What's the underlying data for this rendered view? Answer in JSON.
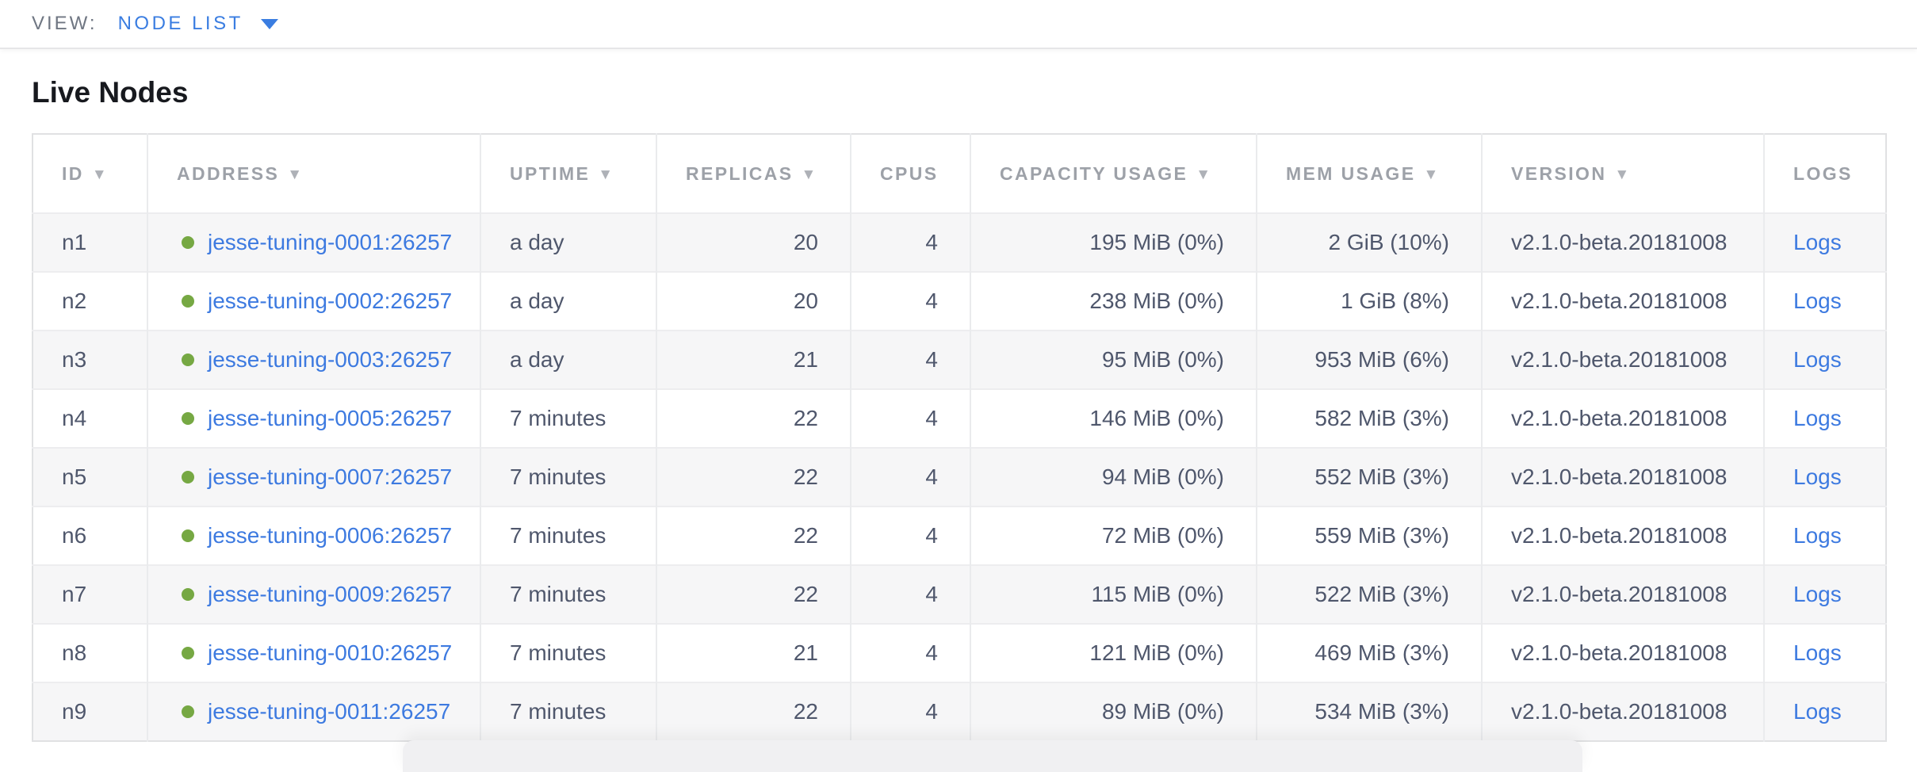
{
  "topbar": {
    "view_label": "VIEW:",
    "view_value": "NODE LIST"
  },
  "page": {
    "title": "Live Nodes"
  },
  "table": {
    "sort_arrow": "▼",
    "columns": [
      {
        "key": "id",
        "label": "ID",
        "sortable": true
      },
      {
        "key": "address",
        "label": "ADDRESS",
        "sortable": true
      },
      {
        "key": "uptime",
        "label": "UPTIME",
        "sortable": true
      },
      {
        "key": "replicas",
        "label": "REPLICAS",
        "sortable": true
      },
      {
        "key": "cpus",
        "label": "CPUS",
        "sortable": false
      },
      {
        "key": "capacity",
        "label": "CAPACITY USAGE",
        "sortable": true
      },
      {
        "key": "mem",
        "label": "MEM USAGE",
        "sortable": true
      },
      {
        "key": "version",
        "label": "VERSION",
        "sortable": true
      },
      {
        "key": "logs",
        "label": "LOGS",
        "sortable": false
      }
    ],
    "rows": [
      {
        "id": "n1",
        "status": "live",
        "address": "jesse-tuning-0001:26257",
        "uptime": "a day",
        "replicas": "20",
        "cpus": "4",
        "capacity": "195 MiB (0%)",
        "mem": "2 GiB (10%)",
        "version": "v2.1.0-beta.20181008",
        "logs_label": "Logs"
      },
      {
        "id": "n2",
        "status": "live",
        "address": "jesse-tuning-0002:26257",
        "uptime": "a day",
        "replicas": "20",
        "cpus": "4",
        "capacity": "238 MiB (0%)",
        "mem": "1 GiB (8%)",
        "version": "v2.1.0-beta.20181008",
        "logs_label": "Logs"
      },
      {
        "id": "n3",
        "status": "live",
        "address": "jesse-tuning-0003:26257",
        "uptime": "a day",
        "replicas": "21",
        "cpus": "4",
        "capacity": "95 MiB (0%)",
        "mem": "953 MiB (6%)",
        "version": "v2.1.0-beta.20181008",
        "logs_label": "Logs"
      },
      {
        "id": "n4",
        "status": "live",
        "address": "jesse-tuning-0005:26257",
        "uptime": "7 minutes",
        "replicas": "22",
        "cpus": "4",
        "capacity": "146 MiB (0%)",
        "mem": "582 MiB (3%)",
        "version": "v2.1.0-beta.20181008",
        "logs_label": "Logs"
      },
      {
        "id": "n5",
        "status": "live",
        "address": "jesse-tuning-0007:26257",
        "uptime": "7 minutes",
        "replicas": "22",
        "cpus": "4",
        "capacity": "94 MiB (0%)",
        "mem": "552 MiB (3%)",
        "version": "v2.1.0-beta.20181008",
        "logs_label": "Logs"
      },
      {
        "id": "n6",
        "status": "live",
        "address": "jesse-tuning-0006:26257",
        "uptime": "7 minutes",
        "replicas": "22",
        "cpus": "4",
        "capacity": "72 MiB (0%)",
        "mem": "559 MiB (3%)",
        "version": "v2.1.0-beta.20181008",
        "logs_label": "Logs"
      },
      {
        "id": "n7",
        "status": "live",
        "address": "jesse-tuning-0009:26257",
        "uptime": "7 minutes",
        "replicas": "22",
        "cpus": "4",
        "capacity": "115 MiB (0%)",
        "mem": "522 MiB (3%)",
        "version": "v2.1.0-beta.20181008",
        "logs_label": "Logs"
      },
      {
        "id": "n8",
        "status": "live",
        "address": "jesse-tuning-0010:26257",
        "uptime": "7 minutes",
        "replicas": "21",
        "cpus": "4",
        "capacity": "121 MiB (0%)",
        "mem": "469 MiB (3%)",
        "version": "v2.1.0-beta.20181008",
        "logs_label": "Logs"
      },
      {
        "id": "n9",
        "status": "live",
        "address": "jesse-tuning-0011:26257",
        "uptime": "7 minutes",
        "replicas": "22",
        "cpus": "4",
        "capacity": "89 MiB (0%)",
        "mem": "534 MiB (3%)",
        "version": "v2.1.0-beta.20181008",
        "logs_label": "Logs"
      }
    ]
  },
  "colors": {
    "accent_blue": "#3d7ae0",
    "live_dot_green": "#76a843",
    "cell_text": "#4f576c",
    "header_text": "#9da1a8",
    "muted_label": "#6f7682",
    "row_stripe": "#f6f6f7"
  },
  "icons": {
    "view_caret": "chevron-down",
    "node_status": "green-circle",
    "sort": "triangle-down"
  }
}
